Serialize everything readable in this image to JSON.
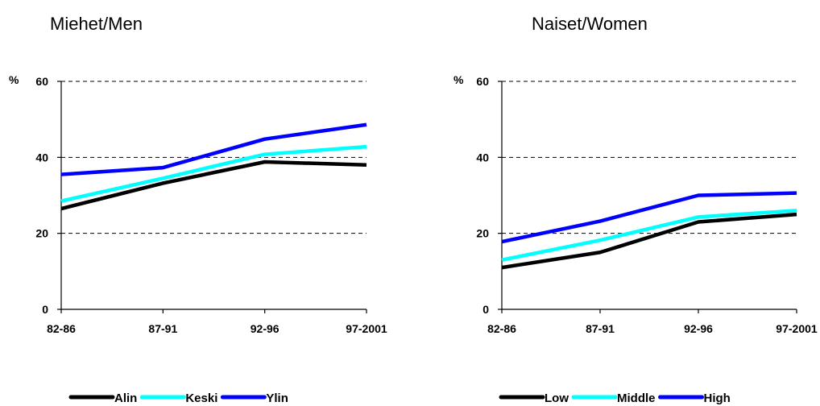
{
  "chart_data": [
    {
      "type": "line",
      "title": "Miehet/Men",
      "ylabel": "%",
      "xlabel": "",
      "ylim": [
        0,
        60
      ],
      "yticks": [
        0,
        20,
        40,
        60
      ],
      "grid": true,
      "legend_position": "bottom",
      "categories": [
        "82-86",
        "87-91",
        "92-96",
        "97-2001"
      ],
      "series": [
        {
          "name": "Alin",
          "color": "#000000",
          "values": [
            26.5,
            33.2,
            38.8,
            38.0
          ]
        },
        {
          "name": "Keski",
          "color": "#00ffff",
          "values": [
            28.5,
            34.5,
            40.8,
            42.8
          ]
        },
        {
          "name": "Ylin",
          "color": "#0000ff",
          "values": [
            35.5,
            37.3,
            44.8,
            48.6
          ]
        }
      ]
    },
    {
      "type": "line",
      "title": "Naiset/Women",
      "ylabel": "%",
      "xlabel": "",
      "ylim": [
        0,
        60
      ],
      "yticks": [
        0,
        20,
        40,
        60
      ],
      "grid": true,
      "legend_position": "bottom",
      "categories": [
        "82-86",
        "87-91",
        "92-96",
        "97-2001"
      ],
      "series": [
        {
          "name": "Low",
          "color": "#000000",
          "values": [
            11.0,
            15.0,
            23.0,
            25.0
          ]
        },
        {
          "name": "Middle",
          "color": "#00ffff",
          "values": [
            13.0,
            18.2,
            24.3,
            26.0
          ]
        },
        {
          "name": "High",
          "color": "#0000ff",
          "values": [
            17.8,
            23.2,
            30.0,
            30.6
          ]
        }
      ]
    }
  ]
}
